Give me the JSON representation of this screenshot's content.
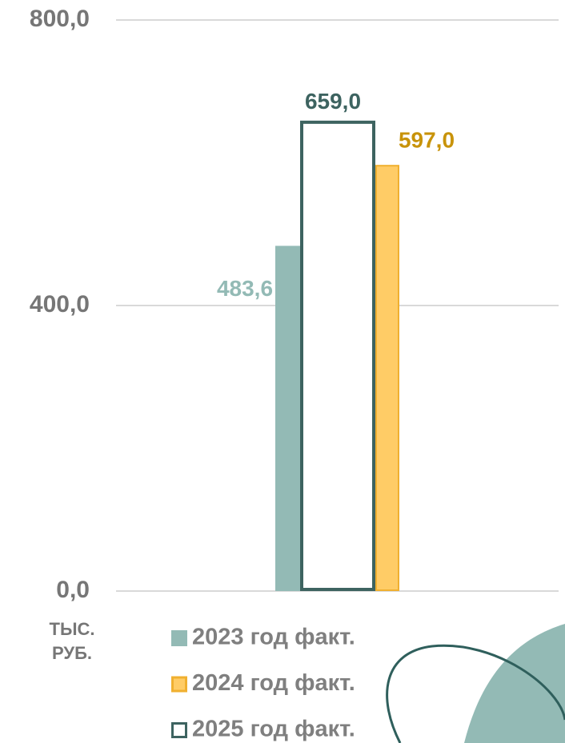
{
  "chart_data": {
    "type": "bar",
    "y_label": "ТЫС. РУБ.",
    "categories": [
      null
    ],
    "series": [
      {
        "name": "2023 год факт.",
        "color": "#93bab5",
        "label_color": "#93bab5",
        "values": [
          483.6
        ],
        "value_labels": [
          "483,6"
        ]
      },
      {
        "name": "2024 год факт.",
        "color": "#ffcc66",
        "stroke": "#f0b030",
        "label_color": "#c8930a",
        "values": [
          597.0
        ],
        "value_labels": [
          "597,0"
        ]
      },
      {
        "name": "2025 год факт.",
        "color": "#ffffff",
        "stroke": "#3d6360",
        "label_color": "#3d6360",
        "values": [
          659.0
        ],
        "value_labels": [
          "659,0"
        ]
      }
    ],
    "ylim": [
      0,
      800
    ],
    "yticks": [
      {
        "value": 0,
        "label": "0,0"
      },
      {
        "value": 400,
        "label": "400,0"
      },
      {
        "value": 800,
        "label": "800,0"
      }
    ],
    "grid": true
  }
}
